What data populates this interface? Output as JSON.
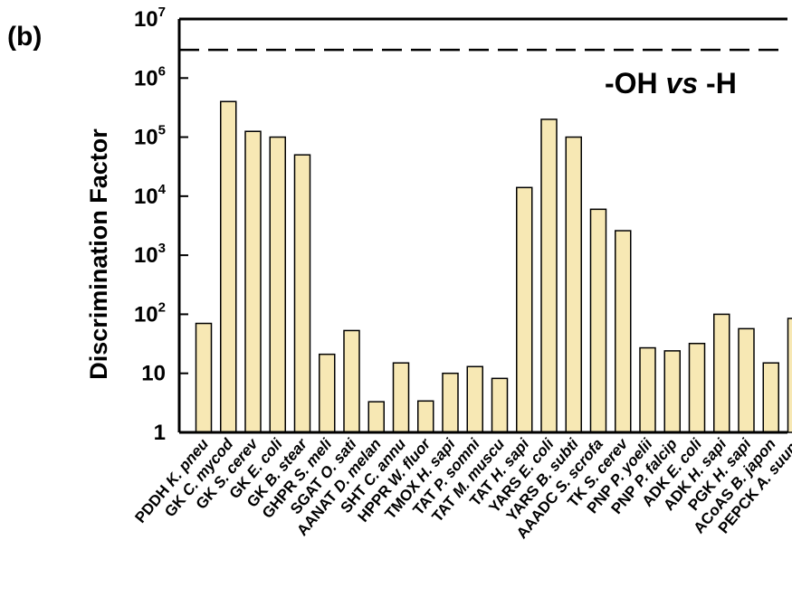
{
  "panel_label": "(b)",
  "chart_data": {
    "type": "bar",
    "ylabel": "Discrimination Factor",
    "yscale": "log",
    "ylim": [
      1,
      10000000
    ],
    "grid": false,
    "bar_color": "#F7E8B4",
    "bar_edge_color": "#000000",
    "yticks": [
      {
        "value": 1,
        "base": "1",
        "exp": ""
      },
      {
        "value": 10,
        "base": "10",
        "exp": ""
      },
      {
        "value": 100,
        "base": "10",
        "exp": "2"
      },
      {
        "value": 1000,
        "base": "10",
        "exp": "3"
      },
      {
        "value": 10000,
        "base": "10",
        "exp": "4"
      },
      {
        "value": 100000,
        "base": "10",
        "exp": "5"
      },
      {
        "value": 1000000,
        "base": "10",
        "exp": "6"
      },
      {
        "value": 10000000,
        "base": "10",
        "exp": "7"
      }
    ],
    "reference_line": {
      "value": 3000000,
      "style": "dashed"
    },
    "annotation": {
      "part1": "-OH ",
      "part2": "vs",
      "part3": " -H"
    },
    "categories": [
      {
        "enzyme": "PDDH",
        "organism": "K. pneu"
      },
      {
        "enzyme": "GK",
        "organism": "C. mycod"
      },
      {
        "enzyme": "GK",
        "organism": "S. cerev"
      },
      {
        "enzyme": "GK",
        "organism": "E. coli"
      },
      {
        "enzyme": "GK",
        "organism": "B. stear"
      },
      {
        "enzyme": "GHPR",
        "organism": "S. meli"
      },
      {
        "enzyme": "SGAT",
        "organism": "O. sati"
      },
      {
        "enzyme": "AANAT",
        "organism": "D. melan"
      },
      {
        "enzyme": "SHT",
        "organism": "C. annu"
      },
      {
        "enzyme": "HPPR",
        "organism": "W. fluor"
      },
      {
        "enzyme": "TMOX",
        "organism": "H. sapi"
      },
      {
        "enzyme": "TAT",
        "organism": "P. somni"
      },
      {
        "enzyme": "TAT",
        "organism": "M. muscu"
      },
      {
        "enzyme": "TAT",
        "organism": "H. sapi"
      },
      {
        "enzyme": "YARS",
        "organism": "E. coli"
      },
      {
        "enzyme": "YARS",
        "organism": "B. subti"
      },
      {
        "enzyme": "AAADC",
        "organism": "S. scrofa"
      },
      {
        "enzyme": "TK",
        "organism": "S. cerev"
      },
      {
        "enzyme": "PNP",
        "organism": "P. yoelii"
      },
      {
        "enzyme": "PNP",
        "organism": "P. falcip"
      },
      {
        "enzyme": "ADK",
        "organism": "E. coli"
      },
      {
        "enzyme": "ADK",
        "organism": "H. sapi"
      },
      {
        "enzyme": "PGK",
        "organism": "H. sapi"
      },
      {
        "enzyme": "ACoAS",
        "organism": "B. japon"
      },
      {
        "enzyme": "PEPCK",
        "organism": "A. suum"
      }
    ],
    "values": [
      70,
      400000,
      125000,
      100000,
      50000,
      21,
      53,
      3.3,
      15,
      3.4,
      10,
      13,
      8.2,
      14000,
      200000,
      100000,
      6000,
      2600,
      27,
      24,
      32,
      100,
      57,
      15,
      85
    ]
  }
}
